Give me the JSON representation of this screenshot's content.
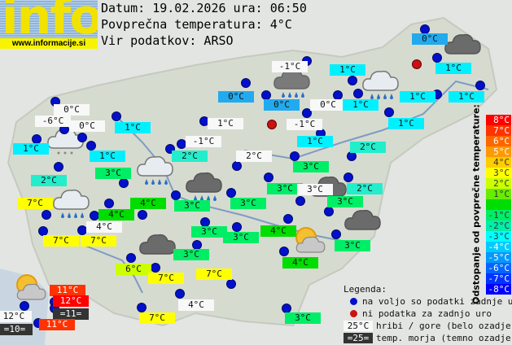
{
  "logo": {
    "word": "info",
    "url": "www.informacije.si"
  },
  "header": {
    "date_line": "Datum: 19.02.2026 ura: 06:50",
    "avg_line": "Povprečna temperatura: 4°C",
    "source_line": "Vir podatkov: ARSO"
  },
  "stations": [
    {
      "temp": "0°C",
      "bg": "#22aaee"
    },
    {
      "temp": "-1°C",
      "bg": "#f8f8f8"
    },
    {
      "temp": "1°C",
      "bg": "#00f0ff"
    },
    {
      "temp": "1°C",
      "bg": "#00f0ff"
    },
    {
      "temp": "0°C",
      "bg": "#22aaee"
    },
    {
      "temp": "0°C",
      "bg": "#22aaee"
    },
    {
      "temp": "0°C",
      "bg": "#f8f8f8"
    },
    {
      "temp": "1°C",
      "bg": "#00f0ff"
    },
    {
      "temp": "1°C",
      "bg": "#00f0ff"
    },
    {
      "temp": "1°C",
      "bg": "#00f0ff"
    },
    {
      "temp": "1°C",
      "bg": "#00f0ff"
    },
    {
      "temp": "-1°C",
      "bg": "#f8f8f8"
    },
    {
      "temp": "1°C",
      "bg": "#f8f8f8"
    },
    {
      "temp": "1°C",
      "bg": "#00f0ff"
    },
    {
      "temp": "2°C",
      "bg": "#22eecc"
    },
    {
      "temp": "2°C",
      "bg": "#f8f8f8"
    },
    {
      "temp": "3°C",
      "bg": "#00ee66"
    },
    {
      "temp": "0°C",
      "bg": "#f8f8f8"
    },
    {
      "temp": "-6°C",
      "bg": "#f8f8f8"
    },
    {
      "temp": "0°C",
      "bg": "#f8f8f8"
    },
    {
      "temp": "1°C",
      "bg": "#00f0ff"
    },
    {
      "temp": "1°C",
      "bg": "#00f0ff"
    },
    {
      "temp": "-1°C",
      "bg": "#f8f8f8"
    },
    {
      "temp": "2°C",
      "bg": "#22eecc"
    },
    {
      "temp": "1°C",
      "bg": "#00f0ff"
    },
    {
      "temp": "2°C",
      "bg": "#22eecc"
    },
    {
      "temp": "3°C",
      "bg": "#00ee66"
    },
    {
      "temp": "3°C",
      "bg": "#00ee66"
    },
    {
      "temp": "3°C",
      "bg": "#f8f8f8"
    },
    {
      "temp": "2°C",
      "bg": "#22eecc"
    },
    {
      "temp": "3°C",
      "bg": "#00ee66"
    },
    {
      "temp": "3°C",
      "bg": "#00ee66"
    },
    {
      "temp": "7°C",
      "bg": "#ffff00"
    },
    {
      "temp": "4°C",
      "bg": "#00dd00"
    },
    {
      "temp": "4°C",
      "bg": "#00dd00"
    },
    {
      "temp": "3°C",
      "bg": "#00ee66"
    },
    {
      "temp": "3°C",
      "bg": "#00ee66"
    },
    {
      "temp": "3°C",
      "bg": "#00ee66"
    },
    {
      "temp": "4°C",
      "bg": "#00dd00"
    },
    {
      "temp": "3°C",
      "bg": "#00ee66"
    },
    {
      "temp": "4°C",
      "bg": "#00dd00"
    },
    {
      "temp": "7°C",
      "bg": "#ffff00"
    },
    {
      "temp": "4°C",
      "bg": "#f8f8f8"
    },
    {
      "temp": "7°C",
      "bg": "#ffff00"
    },
    {
      "temp": "3°C",
      "bg": "#00ee66"
    },
    {
      "temp": "6°C",
      "bg": "#ccff00"
    },
    {
      "temp": "7°C",
      "bg": "#ffff00"
    },
    {
      "temp": "7°C",
      "bg": "#ffff00"
    },
    {
      "temp": "11°C",
      "bg": "#ff3300"
    },
    {
      "temp": "12°C",
      "bg": "#ff0000"
    },
    {
      "temp": "=11=",
      "bg": "#333333"
    },
    {
      "temp": "12°C",
      "bg": "#f8f8f8"
    },
    {
      "temp": "=10=",
      "bg": "#333333"
    },
    {
      "temp": "11°C",
      "bg": "#ff3300"
    },
    {
      "temp": "4°C",
      "bg": "#f8f8f8"
    },
    {
      "temp": "7°C",
      "bg": "#ffff00"
    },
    {
      "temp": "3°C",
      "bg": "#00ee66"
    }
  ],
  "weather_icons": [
    "cloud-dark",
    "cloud-rain",
    "cloud-light-rain",
    "cloud-snow",
    "cloud-light-rain",
    "cloud-dark-rain",
    "cloud-light-rain",
    "cloud-dark",
    "cloud-dark",
    "sun-cloud",
    "cloud-dark",
    "sun-cloud"
  ],
  "scale": {
    "title": "Odstopanje od povprečne temperature:",
    "steps": [
      {
        "label": "8°C",
        "color": "#ff0000"
      },
      {
        "label": "7°C",
        "color": "#ff3300"
      },
      {
        "label": "6°C",
        "color": "#ff6600"
      },
      {
        "label": "5°C",
        "color": "#ff9900"
      },
      {
        "label": "4°C",
        "color": "#ffcc00"
      },
      {
        "label": "3°C",
        "color": "#ffff00"
      },
      {
        "label": "2°C",
        "color": "#ccff00"
      },
      {
        "label": "1°C",
        "color": "#66ee00"
      },
      {
        "label": "",
        "color": "#00dd00"
      },
      {
        "label": "-1°C",
        "color": "#00ee66"
      },
      {
        "label": "-2°C",
        "color": "#00eeaa"
      },
      {
        "label": "-3°C",
        "color": "#00ffff"
      },
      {
        "label": "-4°C",
        "color": "#00ccff"
      },
      {
        "label": "-5°C",
        "color": "#0099ff"
      },
      {
        "label": "-6°C",
        "color": "#0066ff"
      },
      {
        "label": "-7°C",
        "color": "#0033ff"
      },
      {
        "label": "-8°C",
        "color": "#0000ff"
      }
    ]
  },
  "legend": {
    "title": "Legenda:",
    "available": "na voljo so podatki zadnje ure",
    "no_data": "ni podatka za zadnjo uro",
    "hill_sample": "25°C",
    "hill": "hribi / gore (belo ozadje)",
    "sea_sample": "=25=",
    "sea": "temp. morja (temno ozadje)",
    "colors": {
      "available": "#0010cc",
      "no_data": "#cc1111"
    }
  }
}
